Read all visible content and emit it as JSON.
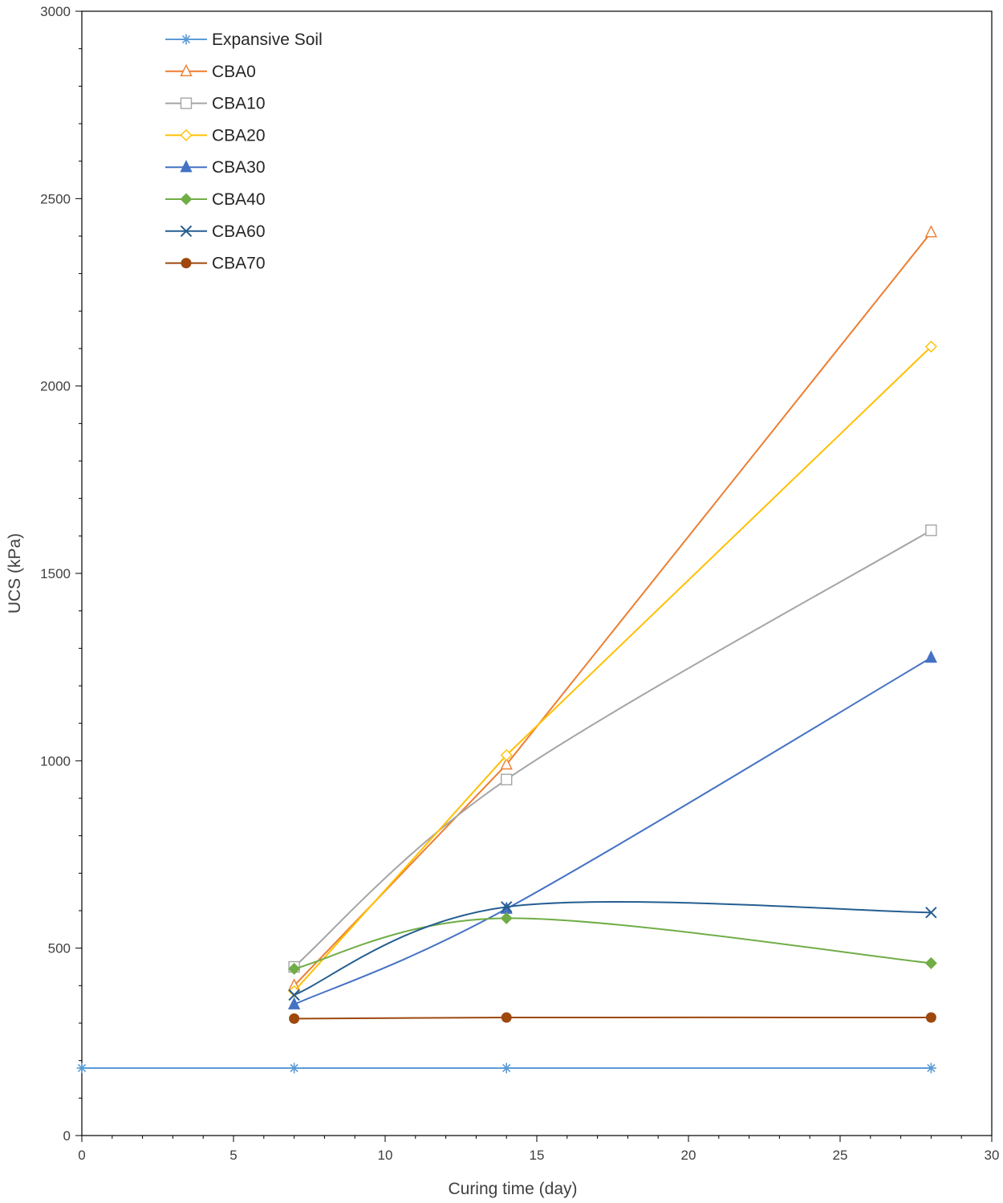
{
  "chart_data": {
    "type": "line",
    "title": "",
    "xlabel": "Curing time (day)",
    "ylabel": "UCS (kPa)",
    "xlim": [
      0,
      30
    ],
    "ylim": [
      0,
      3000
    ],
    "xticks": [
      0,
      5,
      10,
      15,
      20,
      25,
      30
    ],
    "yticks": [
      0,
      500,
      1000,
      1500,
      2000,
      2500,
      3000
    ],
    "legend_position": "top-left",
    "grid": false,
    "series": [
      {
        "name": "Expansive Soil",
        "color": "#5B9BD5",
        "marker": "asterisk",
        "smooth": false,
        "x": [
          0,
          7,
          14,
          28
        ],
        "y": [
          180,
          180,
          180,
          180
        ]
      },
      {
        "name": "CBA0",
        "color": "#ED7D31",
        "marker": "triangle-open",
        "smooth": false,
        "x": [
          7,
          14,
          28
        ],
        "y": [
          400,
          990,
          2410
        ]
      },
      {
        "name": "CBA10",
        "color": "#A5A5A5",
        "marker": "square-open",
        "smooth": true,
        "x": [
          7,
          14,
          28
        ],
        "y": [
          450,
          950,
          1615
        ]
      },
      {
        "name": "CBA20",
        "color": "#FFC000",
        "marker": "diamond-open",
        "smooth": false,
        "x": [
          7,
          14,
          28
        ],
        "y": [
          385,
          1015,
          2105
        ]
      },
      {
        "name": "CBA30",
        "color": "#4472C4",
        "marker": "triangle-filled",
        "smooth": true,
        "x": [
          7,
          14,
          28
        ],
        "y": [
          350,
          605,
          1275
        ]
      },
      {
        "name": "CBA40",
        "color": "#70AD47",
        "marker": "diamond-filled",
        "smooth": true,
        "x": [
          7,
          14,
          28
        ],
        "y": [
          445,
          580,
          460
        ]
      },
      {
        "name": "CBA60",
        "color": "#255E91",
        "marker": "x",
        "smooth": true,
        "x": [
          7,
          14,
          28
        ],
        "y": [
          375,
          610,
          595
        ]
      },
      {
        "name": "CBA70",
        "color": "#9E480E",
        "marker": "circle-filled",
        "smooth": true,
        "x": [
          7,
          14,
          28
        ],
        "y": [
          312,
          315,
          315
        ]
      }
    ]
  }
}
